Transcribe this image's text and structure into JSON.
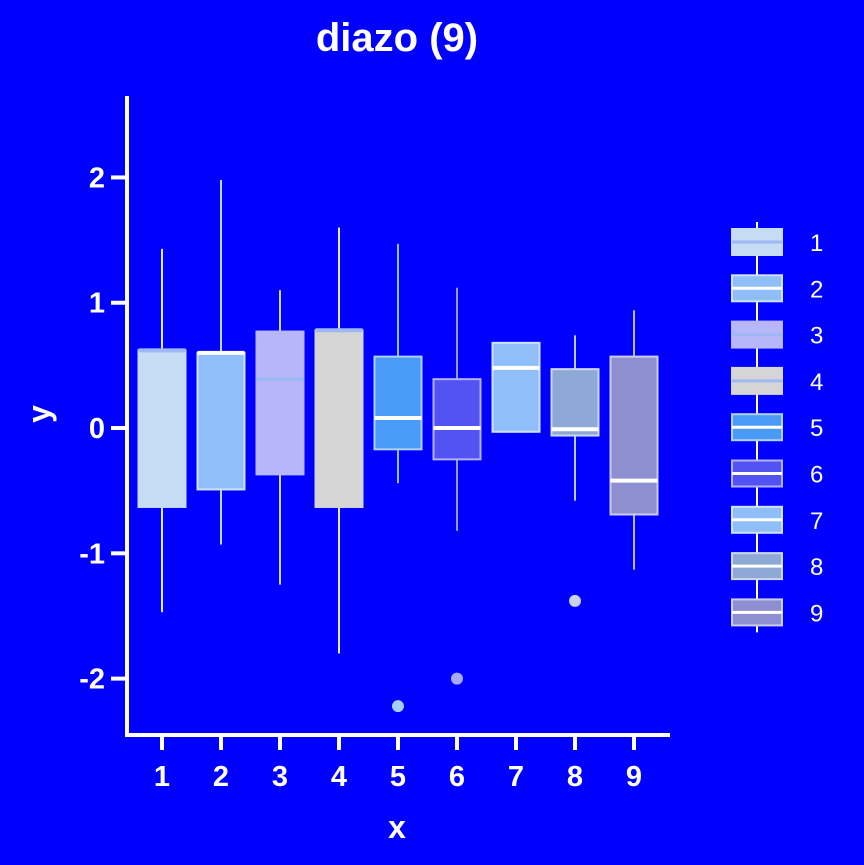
{
  "chart_data": {
    "type": "boxplot",
    "title": "diazo (9)",
    "xlabel": "x",
    "ylabel": "y",
    "ylim": [
      -2.45,
      2.65
    ],
    "y_ticks": [
      -2,
      -1,
      0,
      1,
      2
    ],
    "y_tick_labels": [
      "-2",
      "-1",
      "0",
      "1",
      "2"
    ],
    "categories": [
      "1",
      "2",
      "3",
      "4",
      "5",
      "6",
      "7",
      "8",
      "9"
    ],
    "legend": {
      "position": "right",
      "entries": [
        "1",
        "2",
        "3",
        "4",
        "5",
        "6",
        "7",
        "8",
        "9"
      ]
    },
    "colors": {
      "background": "#0000FF",
      "axis": "#FFFFFF",
      "text": "#FFFFFF",
      "median_default": "#FFFFFF",
      "median_darker": "#9EB9F2"
    },
    "series": [
      {
        "category": "1",
        "fill": "#C6DBF4",
        "min": -1.47,
        "q1": -0.63,
        "median": 0.62,
        "q3": 0.62,
        "max": 1.43,
        "outliers": []
      },
      {
        "category": "2",
        "fill": "#8FBEF8",
        "min": -0.93,
        "q1": -0.49,
        "median": 0.6,
        "q3": 0.6,
        "max": 1.98,
        "outliers": []
      },
      {
        "category": "3",
        "fill": "#B8B6FA",
        "min": -1.25,
        "q1": -0.37,
        "median": 0.39,
        "q3": 0.77,
        "max": 1.1,
        "outliers": []
      },
      {
        "category": "4",
        "fill": "#D5D5D5",
        "min": -1.8,
        "q1": -0.63,
        "median": 0.78,
        "q3": 0.78,
        "max": 1.6,
        "outliers": []
      },
      {
        "category": "5",
        "fill": "#4A9AF8",
        "min": -0.44,
        "q1": -0.17,
        "median": 0.08,
        "q3": 0.57,
        "max": 1.47,
        "outliers": [
          -2.22
        ]
      },
      {
        "category": "6",
        "fill": "#5352F2",
        "min": -0.82,
        "q1": -0.25,
        "median": 0.0,
        "q3": 0.39,
        "max": 1.12,
        "outliers": [
          -2.0
        ]
      },
      {
        "category": "7",
        "fill": "#8FBEF8",
        "min": -0.03,
        "q1": -0.03,
        "median": 0.48,
        "q3": 0.68,
        "max": 0.68,
        "outliers": []
      },
      {
        "category": "8",
        "fill": "#8EA9D6",
        "min": -0.58,
        "q1": -0.06,
        "median": -0.01,
        "q3": 0.47,
        "max": 0.74,
        "outliers": [
          -1.38
        ]
      },
      {
        "category": "9",
        "fill": "#8D8FD1",
        "min": -1.13,
        "q1": -0.69,
        "median": -0.42,
        "q3": 0.57,
        "max": 0.94,
        "outliers": []
      }
    ]
  }
}
